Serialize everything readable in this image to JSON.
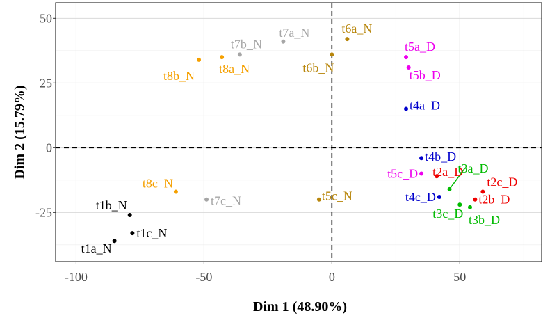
{
  "chart_data": {
    "type": "scatter",
    "title": "",
    "xlabel": "Dim 1 (48.90%)",
    "ylabel": "Dim 2 (15.79%)",
    "xlim": [
      -108,
      82
    ],
    "ylim": [
      -44,
      56
    ],
    "x_ticks": [
      {
        "value": -100,
        "label": "-100"
      },
      {
        "value": -50,
        "label": "-50"
      },
      {
        "value": 0,
        "label": "0"
      },
      {
        "value": 50,
        "label": "50"
      }
    ],
    "y_ticks": [
      {
        "value": -25,
        "label": "-25"
      },
      {
        "value": 0,
        "label": "0"
      },
      {
        "value": 25,
        "label": "25"
      },
      {
        "value": 50,
        "label": "50"
      }
    ],
    "grid": true,
    "reference_lines": {
      "x": 0,
      "y": 0,
      "style": "dashed"
    },
    "colors": {
      "black": "#000000",
      "orange": "#f5a000",
      "gray": "#a6a6a6",
      "olive": "#b8860b",
      "magenta": "#ee00ee",
      "blue": "#0000cc",
      "red": "#ee0000",
      "green": "#00bb00"
    },
    "points": [
      {
        "label": "t1a_N",
        "x": -85,
        "y": -36,
        "color": "black"
      },
      {
        "label": "t1b_N",
        "x": -79,
        "y": -26,
        "color": "black"
      },
      {
        "label": "t1c_N",
        "x": -78,
        "y": -33,
        "color": "black"
      },
      {
        "label": "t8a_N",
        "x": -43,
        "y": 35,
        "color": "orange"
      },
      {
        "label": "t8b_N",
        "x": -52,
        "y": 34,
        "color": "orange"
      },
      {
        "label": "t8c_N",
        "x": -61,
        "y": -17,
        "color": "orange"
      },
      {
        "label": "t7a_N",
        "x": -19,
        "y": 41,
        "color": "gray"
      },
      {
        "label": "t7b_N",
        "x": -36,
        "y": 36,
        "color": "gray"
      },
      {
        "label": "t7c_N",
        "x": -49,
        "y": -20,
        "color": "gray"
      },
      {
        "label": "t6a_N",
        "x": 6,
        "y": 42,
        "color": "olive"
      },
      {
        "label": "t6b_N",
        "x": 0,
        "y": 36,
        "color": "olive"
      },
      {
        "label": "t5c_N",
        "x": -5,
        "y": -20,
        "color": "olive"
      },
      {
        "label": "t5a_D",
        "x": 29,
        "y": 35,
        "color": "magenta"
      },
      {
        "label": "t5b_D",
        "x": 30,
        "y": 31,
        "color": "magenta"
      },
      {
        "label": "t5c_D",
        "x": 35,
        "y": -10,
        "color": "magenta"
      },
      {
        "label": "t4a_D",
        "x": 29,
        "y": 15,
        "color": "blue"
      },
      {
        "label": "t4b_D",
        "x": 35,
        "y": -4,
        "color": "blue"
      },
      {
        "label": "t4c_D",
        "x": 42,
        "y": -19,
        "color": "blue"
      },
      {
        "label": "t2a_D",
        "x": 41,
        "y": -11,
        "color": "red"
      },
      {
        "label": "t2b_D",
        "x": 56,
        "y": -20,
        "color": "red"
      },
      {
        "label": "t2c_D",
        "x": 59,
        "y": -17,
        "color": "red"
      },
      {
        "label": "t3a_D",
        "x": 46,
        "y": -16,
        "color": "green"
      },
      {
        "label": "t3b_D",
        "x": 54,
        "y": -23,
        "color": "green"
      },
      {
        "label": "t3c_D",
        "x": 50,
        "y": -22,
        "color": "green"
      }
    ]
  }
}
